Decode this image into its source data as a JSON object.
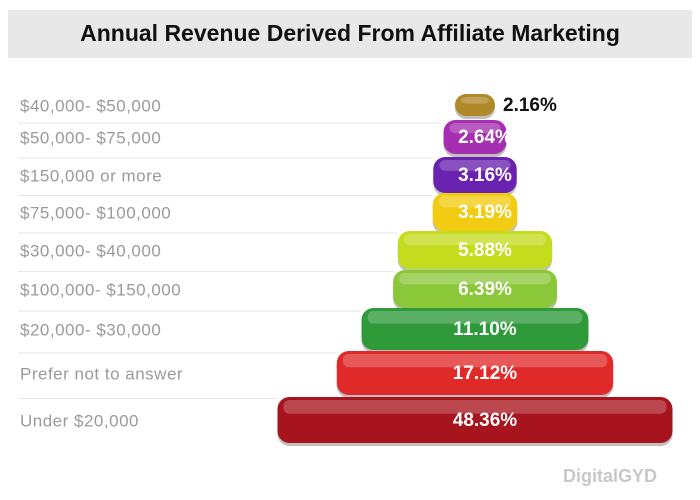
{
  "chart_data": {
    "type": "pyramid",
    "title": "Annual Revenue Derived From Affiliate Marketing",
    "categories": [
      "$40,000- $50,000",
      "$50,000- $75,000",
      "$150,000 or more",
      "$75,000- $100,000",
      "$30,000- $40,000",
      "$100,000- $150,000",
      "$20,000- $30,000",
      "Prefer not to answer",
      "Under $20,000"
    ],
    "values": [
      2.16,
      2.64,
      3.16,
      3.19,
      5.88,
      6.39,
      11.1,
      17.12,
      48.36
    ],
    "value_labels": [
      "2.16%",
      "2.64%",
      "3.16%",
      "3.19%",
      "5.88%",
      "6.39%",
      "11.10%",
      "17.12%",
      "48.36%"
    ],
    "colors": [
      "#b08a2a",
      "#a52fb0",
      "#6a22b0",
      "#f2cc12",
      "#c4dc1e",
      "#8ac83a",
      "#2e9a3a",
      "#e02a2a",
      "#a8141e"
    ],
    "watermark": "DigitalGYD"
  }
}
